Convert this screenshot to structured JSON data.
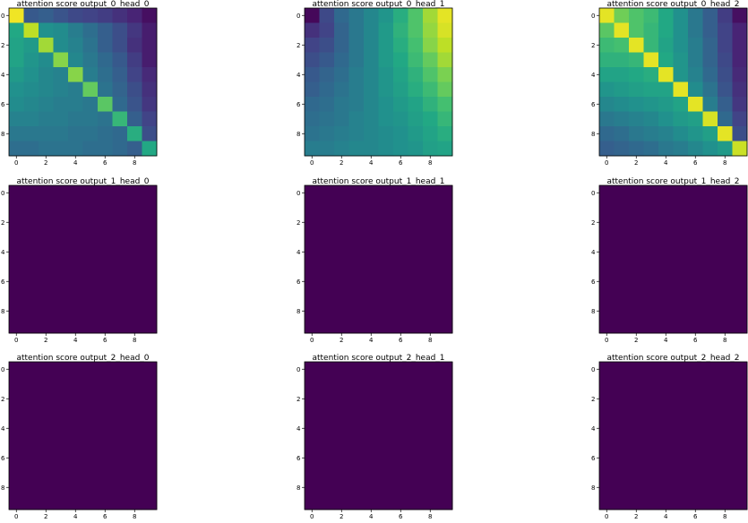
{
  "figure": {
    "background": "#ffffff"
  },
  "chart_data": [
    {
      "type": "heatmap",
      "title": "attention score output_0_head_0",
      "xticks": [
        "0",
        "2",
        "4",
        "6",
        "8"
      ],
      "yticks": [
        "0",
        "2",
        "4",
        "6",
        "8"
      ],
      "matrix": [
        [
          0.98,
          0.28,
          0.3,
          0.26,
          0.22,
          0.2,
          0.18,
          0.14,
          0.1,
          0.04
        ],
        [
          0.6,
          0.9,
          0.5,
          0.48,
          0.42,
          0.36,
          0.3,
          0.24,
          0.16,
          0.08
        ],
        [
          0.58,
          0.54,
          0.86,
          0.48,
          0.44,
          0.38,
          0.3,
          0.24,
          0.14,
          0.08
        ],
        [
          0.58,
          0.52,
          0.48,
          0.82,
          0.46,
          0.4,
          0.34,
          0.28,
          0.18,
          0.08
        ],
        [
          0.54,
          0.5,
          0.46,
          0.44,
          0.82,
          0.42,
          0.36,
          0.3,
          0.2,
          0.12
        ],
        [
          0.5,
          0.48,
          0.46,
          0.44,
          0.42,
          0.76,
          0.38,
          0.32,
          0.24,
          0.14
        ],
        [
          0.48,
          0.46,
          0.44,
          0.42,
          0.42,
          0.4,
          0.74,
          0.34,
          0.26,
          0.16
        ],
        [
          0.44,
          0.44,
          0.42,
          0.42,
          0.4,
          0.4,
          0.38,
          0.66,
          0.3,
          0.2
        ],
        [
          0.4,
          0.4,
          0.4,
          0.4,
          0.38,
          0.38,
          0.36,
          0.34,
          0.62,
          0.24
        ],
        [
          0.36,
          0.36,
          0.38,
          0.38,
          0.38,
          0.36,
          0.36,
          0.34,
          0.3,
          0.6
        ]
      ]
    },
    {
      "type": "heatmap",
      "title": "attention score output_0_head_1",
      "xticks": [
        "0",
        "2",
        "4",
        "6",
        "8"
      ],
      "yticks": [
        "0",
        "2",
        "4",
        "6",
        "8"
      ],
      "matrix": [
        [
          0.02,
          0.22,
          0.34,
          0.4,
          0.46,
          0.52,
          0.62,
          0.72,
          0.86,
          0.96
        ],
        [
          0.14,
          0.2,
          0.32,
          0.4,
          0.46,
          0.54,
          0.64,
          0.72,
          0.84,
          0.94
        ],
        [
          0.2,
          0.24,
          0.32,
          0.4,
          0.46,
          0.54,
          0.62,
          0.7,
          0.82,
          0.9
        ],
        [
          0.24,
          0.28,
          0.34,
          0.4,
          0.46,
          0.54,
          0.6,
          0.68,
          0.76,
          0.86
        ],
        [
          0.28,
          0.32,
          0.36,
          0.42,
          0.46,
          0.52,
          0.58,
          0.64,
          0.72,
          0.8
        ],
        [
          0.3,
          0.34,
          0.38,
          0.42,
          0.46,
          0.52,
          0.56,
          0.62,
          0.68,
          0.76
        ],
        [
          0.34,
          0.36,
          0.4,
          0.42,
          0.46,
          0.5,
          0.54,
          0.58,
          0.64,
          0.7
        ],
        [
          0.36,
          0.38,
          0.4,
          0.44,
          0.46,
          0.5,
          0.52,
          0.56,
          0.6,
          0.66
        ],
        [
          0.38,
          0.4,
          0.42,
          0.44,
          0.46,
          0.48,
          0.5,
          0.54,
          0.58,
          0.62
        ],
        [
          0.42,
          0.42,
          0.44,
          0.46,
          0.46,
          0.48,
          0.5,
          0.52,
          0.56,
          0.58
        ]
      ]
    },
    {
      "type": "heatmap",
      "title": "attention score output_0_head_2",
      "xticks": [
        "0",
        "2",
        "4",
        "6",
        "8"
      ],
      "yticks": [
        "0",
        "2",
        "4",
        "6",
        "8"
      ],
      "matrix": [
        [
          0.96,
          0.78,
          0.72,
          0.68,
          0.6,
          0.5,
          0.4,
          0.3,
          0.18,
          0.04
        ],
        [
          0.74,
          0.96,
          0.72,
          0.66,
          0.6,
          0.5,
          0.4,
          0.3,
          0.2,
          0.1
        ],
        [
          0.68,
          0.7,
          0.96,
          0.66,
          0.58,
          0.5,
          0.42,
          0.32,
          0.2,
          0.1
        ],
        [
          0.64,
          0.64,
          0.66,
          0.96,
          0.6,
          0.52,
          0.42,
          0.32,
          0.22,
          0.1
        ],
        [
          0.58,
          0.58,
          0.6,
          0.62,
          0.96,
          0.52,
          0.44,
          0.34,
          0.24,
          0.12
        ],
        [
          0.52,
          0.54,
          0.56,
          0.58,
          0.58,
          0.96,
          0.48,
          0.38,
          0.26,
          0.14
        ],
        [
          0.46,
          0.48,
          0.5,
          0.52,
          0.54,
          0.58,
          0.96,
          0.42,
          0.3,
          0.16
        ],
        [
          0.4,
          0.42,
          0.44,
          0.46,
          0.5,
          0.54,
          0.56,
          0.94,
          0.34,
          0.2
        ],
        [
          0.34,
          0.36,
          0.4,
          0.42,
          0.44,
          0.48,
          0.52,
          0.56,
          0.96,
          0.24
        ],
        [
          0.3,
          0.32,
          0.34,
          0.36,
          0.4,
          0.42,
          0.46,
          0.5,
          0.54,
          0.92
        ]
      ]
    },
    {
      "type": "heatmap",
      "title": "attention score output_1_head_0",
      "xticks": [
        "0",
        "2",
        "4",
        "6",
        "8"
      ],
      "yticks": [
        "0",
        "2",
        "4",
        "6",
        "8"
      ],
      "uniform": 0
    },
    {
      "type": "heatmap",
      "title": "attention score output_1_head_1",
      "xticks": [
        "0",
        "2",
        "4",
        "6",
        "8"
      ],
      "yticks": [
        "0",
        "2",
        "4",
        "6",
        "8"
      ],
      "uniform": 0
    },
    {
      "type": "heatmap",
      "title": "attention score output_1_head_2",
      "xticks": [
        "0",
        "2",
        "4",
        "6",
        "8"
      ],
      "yticks": [
        "0",
        "2",
        "4",
        "6",
        "8"
      ],
      "uniform": 0
    },
    {
      "type": "heatmap",
      "title": "attention score output_2_head_0",
      "xticks": [
        "0",
        "2",
        "4",
        "6",
        "8"
      ],
      "yticks": [
        "0",
        "2",
        "4",
        "6",
        "8"
      ],
      "uniform": 0
    },
    {
      "type": "heatmap",
      "title": "attention score output_2_head_1",
      "xticks": [
        "0",
        "2",
        "4",
        "6",
        "8"
      ],
      "yticks": [
        "0",
        "2",
        "4",
        "6",
        "8"
      ],
      "uniform": 0
    },
    {
      "type": "heatmap",
      "title": "attention score output_2_head_2",
      "xticks": [
        "0",
        "2",
        "4",
        "6",
        "8"
      ],
      "yticks": [
        "0",
        "2",
        "4",
        "6",
        "8"
      ],
      "uniform": 0
    }
  ]
}
